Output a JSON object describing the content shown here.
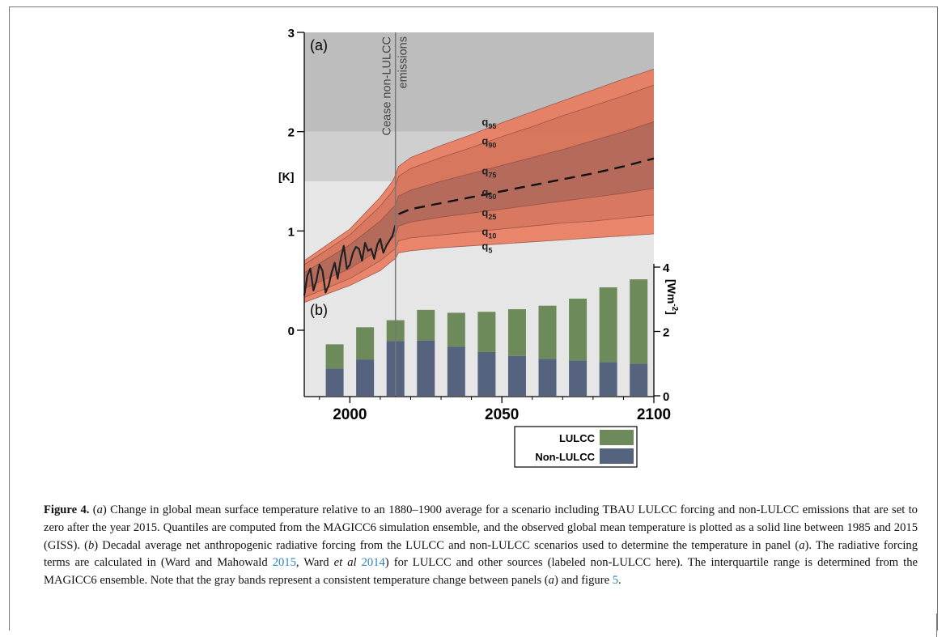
{
  "chart_data": [
    {
      "panel": "(a)",
      "type": "area",
      "ylabel": "[K]",
      "ylim": [
        0,
        3
      ],
      "yticks": [
        "0",
        "1",
        "2",
        "3"
      ],
      "xlim": [
        1985,
        2100
      ],
      "xticks": [
        "2000",
        "2050",
        "2100"
      ],
      "grid": false,
      "gray_bands": [
        {
          "from": 0,
          "to": 1.5,
          "color": "#e6e6e6"
        },
        {
          "from": 1.5,
          "to": 2.0,
          "color": "#cfcfcf"
        },
        {
          "from": 2.0,
          "to": 3.0,
          "color": "#bdbdbd"
        }
      ],
      "annotation": {
        "x": 2015,
        "line1": "Cease non-LULCC",
        "line2": "emissions"
      },
      "x": [
        1985,
        2000,
        2010,
        2014,
        2015,
        2016,
        2020,
        2030,
        2040,
        2050,
        2060,
        2070,
        2080,
        2090,
        2100
      ],
      "quantiles": [
        {
          "label": "q",
          "sub": "5",
          "values": [
            0.28,
            0.45,
            0.6,
            0.7,
            0.72,
            0.78,
            0.8,
            0.83,
            0.85,
            0.87,
            0.89,
            0.91,
            0.93,
            0.95,
            0.97
          ]
        },
        {
          "label": "q",
          "sub": "10",
          "values": [
            0.33,
            0.52,
            0.7,
            0.8,
            0.82,
            0.9,
            0.93,
            0.96,
            0.99,
            1.02,
            1.05,
            1.08,
            1.1,
            1.13,
            1.16
          ]
        },
        {
          "label": "q",
          "sub": "25",
          "values": [
            0.42,
            0.62,
            0.82,
            0.93,
            0.96,
            1.05,
            1.09,
            1.14,
            1.18,
            1.22,
            1.26,
            1.3,
            1.34,
            1.38,
            1.43
          ]
        },
        {
          "label": "q",
          "sub": "50",
          "values": [
            0.5,
            0.74,
            0.96,
            1.07,
            1.1,
            1.17,
            1.22,
            1.28,
            1.34,
            1.4,
            1.46,
            1.52,
            1.58,
            1.65,
            1.73
          ]
        },
        {
          "label": "q",
          "sub": "75",
          "values": [
            0.58,
            0.86,
            1.1,
            1.23,
            1.26,
            1.35,
            1.41,
            1.5,
            1.58,
            1.66,
            1.74,
            1.82,
            1.91,
            2.0,
            2.1
          ]
        },
        {
          "label": "q",
          "sub": "90",
          "values": [
            0.66,
            0.96,
            1.25,
            1.4,
            1.45,
            1.55,
            1.63,
            1.74,
            1.84,
            1.95,
            2.05,
            2.16,
            2.26,
            2.36,
            2.47
          ]
        },
        {
          "label": "q",
          "sub": "95",
          "values": [
            0.7,
            1.02,
            1.34,
            1.5,
            1.56,
            1.65,
            1.74,
            1.86,
            1.97,
            2.09,
            2.2,
            2.31,
            2.42,
            2.53,
            2.63
          ]
        }
      ],
      "observed": {
        "x": [
          1985,
          1986,
          1987,
          1988,
          1989,
          1990,
          1991,
          1992,
          1993,
          1994,
          1995,
          1996,
          1997,
          1998,
          1999,
          2000,
          2001,
          2002,
          2003,
          2004,
          2005,
          2006,
          2007,
          2008,
          2009,
          2010,
          2011,
          2012,
          2013,
          2014,
          2015
        ],
        "values": [
          0.35,
          0.55,
          0.62,
          0.4,
          0.5,
          0.66,
          0.6,
          0.38,
          0.45,
          0.58,
          0.68,
          0.52,
          0.72,
          0.85,
          0.62,
          0.66,
          0.78,
          0.84,
          0.82,
          0.7,
          0.88,
          0.8,
          0.82,
          0.72,
          0.86,
          0.92,
          0.78,
          0.85,
          0.9,
          0.95,
          1.06
        ]
      }
    },
    {
      "panel": "(b)",
      "type": "bar",
      "ylabel": "[Wm-2]",
      "ylim": [
        0,
        4
      ],
      "yticks": [
        "0",
        "2",
        "4"
      ],
      "categories": [
        1995,
        2005,
        2015,
        2025,
        2035,
        2045,
        2055,
        2065,
        2075,
        2085,
        2095
      ],
      "series": [
        {
          "name": "LULCC",
          "color": "#6c8a5a",
          "values": [
            0.75,
            1.0,
            0.65,
            0.95,
            1.05,
            1.25,
            1.45,
            1.65,
            1.92,
            2.32,
            2.62
          ]
        },
        {
          "name": "Non-LULCC",
          "color": "#55637f",
          "values": [
            0.85,
            1.13,
            1.7,
            1.72,
            1.53,
            1.36,
            1.24,
            1.15,
            1.1,
            1.05,
            1.0
          ]
        }
      ]
    }
  ],
  "caption": {
    "label": "Figure 4.",
    "html": " (<i>a</i>) Change in global mean surface temperature relative to an 1880–1900 average for a scenario including TBAU LULCC forcing and non-LULCC emissions that are set to zero after the year 2015. Quantiles are computed from the MAGICC6 simulation ensemble, and the observed global mean temperature is plotted as a solid line between 1985 and 2015 (GISS). (<i>b</i>) Decadal average net anthropogenic radiative forcing from the LULCC and non-LULCC scenarios used to determine the temperature in panel (<i>a</i>). The radiative forcing terms are calculated in (Ward and Mahowald <a>2015</a>, Ward <i>et al</i> <a>2014</a>) for LULCC and other sources (labeled non-LULCC here). The interquartile range is determined from the MAGICC6 ensemble. Note that the gray bands represent a consistent temperature change between panels (<i>a</i>) and figure <a>5</a>."
  }
}
